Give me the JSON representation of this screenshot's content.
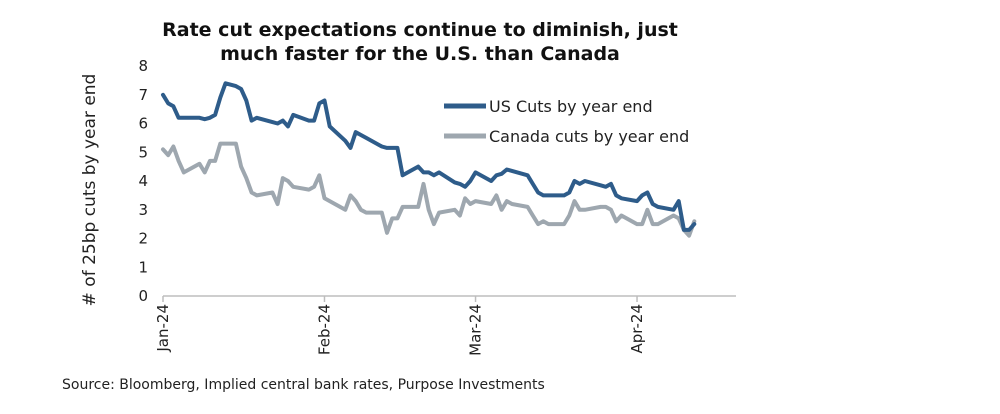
{
  "chart_data": {
    "type": "line",
    "title_lines": [
      "Rate cut expectations continue to diminish, just",
      "much faster for the U.S. than Canada"
    ],
    "ylabel": "# of 25bp cuts by year end",
    "xlabel": "",
    "ylim": [
      0,
      8
    ],
    "yticks": [
      "0",
      "1",
      "2",
      "3",
      "4",
      "5",
      "6",
      "7",
      "8"
    ],
    "xlim": [
      "2024-01-01",
      "2024-04-20"
    ],
    "xticks": [
      {
        "date": "2024-01-01",
        "label": "Jan-24"
      },
      {
        "date": "2024-02-01",
        "label": "Feb-24"
      },
      {
        "date": "2024-03-01",
        "label": "Mar-24"
      },
      {
        "date": "2024-04-01",
        "label": "Apr-24"
      }
    ],
    "grid": false,
    "legend_position": "top-right",
    "series": [
      {
        "name": "US Cuts by year end",
        "color": "#2e5c8a",
        "points": [
          [
            "2024-01-01",
            7.0
          ],
          [
            "2024-01-02",
            6.7
          ],
          [
            "2024-01-03",
            6.6
          ],
          [
            "2024-01-04",
            6.2
          ],
          [
            "2024-01-05",
            6.2
          ],
          [
            "2024-01-08",
            6.2
          ],
          [
            "2024-01-09",
            6.15
          ],
          [
            "2024-01-10",
            6.2
          ],
          [
            "2024-01-11",
            6.3
          ],
          [
            "2024-01-12",
            6.9
          ],
          [
            "2024-01-13",
            7.4
          ],
          [
            "2024-01-15",
            7.3
          ],
          [
            "2024-01-16",
            7.2
          ],
          [
            "2024-01-17",
            6.8
          ],
          [
            "2024-01-18",
            6.1
          ],
          [
            "2024-01-19",
            6.2
          ],
          [
            "2024-01-22",
            6.05
          ],
          [
            "2024-01-23",
            6.0
          ],
          [
            "2024-01-24",
            6.1
          ],
          [
            "2024-01-25",
            5.9
          ],
          [
            "2024-01-26",
            6.3
          ],
          [
            "2024-01-29",
            6.1
          ],
          [
            "2024-01-30",
            6.1
          ],
          [
            "2024-01-31",
            6.7
          ],
          [
            "2024-02-01",
            6.8
          ],
          [
            "2024-02-02",
            5.9
          ],
          [
            "2024-02-05",
            5.4
          ],
          [
            "2024-02-06",
            5.15
          ],
          [
            "2024-02-07",
            5.7
          ],
          [
            "2024-02-08",
            5.6
          ],
          [
            "2024-02-09",
            5.5
          ],
          [
            "2024-02-12",
            5.2
          ],
          [
            "2024-02-13",
            5.15
          ],
          [
            "2024-02-14",
            5.15
          ],
          [
            "2024-02-15",
            5.15
          ],
          [
            "2024-02-16",
            4.2
          ],
          [
            "2024-02-19",
            4.5
          ],
          [
            "2024-02-20",
            4.3
          ],
          [
            "2024-02-21",
            4.3
          ],
          [
            "2024-02-22",
            4.2
          ],
          [
            "2024-02-23",
            4.3
          ],
          [
            "2024-02-26",
            3.95
          ],
          [
            "2024-02-27",
            3.9
          ],
          [
            "2024-02-28",
            3.8
          ],
          [
            "2024-02-29",
            4.0
          ],
          [
            "2024-03-01",
            4.3
          ],
          [
            "2024-03-04",
            4.0
          ],
          [
            "2024-03-05",
            4.2
          ],
          [
            "2024-03-06",
            4.25
          ],
          [
            "2024-03-07",
            4.4
          ],
          [
            "2024-03-08",
            4.35
          ],
          [
            "2024-03-11",
            4.2
          ],
          [
            "2024-03-12",
            3.9
          ],
          [
            "2024-03-13",
            3.6
          ],
          [
            "2024-03-14",
            3.5
          ],
          [
            "2024-03-15",
            3.5
          ],
          [
            "2024-03-18",
            3.5
          ],
          [
            "2024-03-19",
            3.6
          ],
          [
            "2024-03-20",
            4.0
          ],
          [
            "2024-03-21",
            3.9
          ],
          [
            "2024-03-22",
            4.0
          ],
          [
            "2024-03-25",
            3.85
          ],
          [
            "2024-03-26",
            3.8
          ],
          [
            "2024-03-27",
            3.9
          ],
          [
            "2024-03-28",
            3.5
          ],
          [
            "2024-03-29",
            3.4
          ],
          [
            "2024-04-01",
            3.3
          ],
          [
            "2024-04-02",
            3.5
          ],
          [
            "2024-04-03",
            3.6
          ],
          [
            "2024-04-04",
            3.2
          ],
          [
            "2024-04-05",
            3.1
          ],
          [
            "2024-04-08",
            3.0
          ],
          [
            "2024-04-09",
            3.3
          ],
          [
            "2024-04-10",
            2.3
          ],
          [
            "2024-04-11",
            2.3
          ],
          [
            "2024-04-12",
            2.5
          ]
        ]
      },
      {
        "name": "Canada cuts by year end",
        "color": "#9ea7af",
        "points": [
          [
            "2024-01-01",
            5.1
          ],
          [
            "2024-01-02",
            4.9
          ],
          [
            "2024-01-03",
            5.2
          ],
          [
            "2024-01-04",
            4.7
          ],
          [
            "2024-01-05",
            4.3
          ],
          [
            "2024-01-08",
            4.6
          ],
          [
            "2024-01-09",
            4.3
          ],
          [
            "2024-01-10",
            4.7
          ],
          [
            "2024-01-11",
            4.7
          ],
          [
            "2024-01-12",
            5.3
          ],
          [
            "2024-01-15",
            5.3
          ],
          [
            "2024-01-16",
            4.5
          ],
          [
            "2024-01-17",
            4.1
          ],
          [
            "2024-01-18",
            3.6
          ],
          [
            "2024-01-19",
            3.5
          ],
          [
            "2024-01-22",
            3.6
          ],
          [
            "2024-01-23",
            3.2
          ],
          [
            "2024-01-24",
            4.1
          ],
          [
            "2024-01-25",
            4.0
          ],
          [
            "2024-01-26",
            3.8
          ],
          [
            "2024-01-29",
            3.7
          ],
          [
            "2024-01-30",
            3.8
          ],
          [
            "2024-01-31",
            4.2
          ],
          [
            "2024-02-01",
            3.4
          ],
          [
            "2024-02-02",
            3.3
          ],
          [
            "2024-02-05",
            3.0
          ],
          [
            "2024-02-06",
            3.5
          ],
          [
            "2024-02-07",
            3.3
          ],
          [
            "2024-02-08",
            3.0
          ],
          [
            "2024-02-09",
            2.9
          ],
          [
            "2024-02-12",
            2.9
          ],
          [
            "2024-02-13",
            2.2
          ],
          [
            "2024-02-14",
            2.7
          ],
          [
            "2024-02-15",
            2.7
          ],
          [
            "2024-02-16",
            3.1
          ],
          [
            "2024-02-19",
            3.1
          ],
          [
            "2024-02-20",
            3.9
          ],
          [
            "2024-02-21",
            3.0
          ],
          [
            "2024-02-22",
            2.5
          ],
          [
            "2024-02-23",
            2.9
          ],
          [
            "2024-02-26",
            3.0
          ],
          [
            "2024-02-27",
            2.8
          ],
          [
            "2024-02-28",
            3.4
          ],
          [
            "2024-02-29",
            3.2
          ],
          [
            "2024-03-01",
            3.3
          ],
          [
            "2024-03-04",
            3.2
          ],
          [
            "2024-03-05",
            3.5
          ],
          [
            "2024-03-06",
            3.0
          ],
          [
            "2024-03-07",
            3.3
          ],
          [
            "2024-03-08",
            3.2
          ],
          [
            "2024-03-11",
            3.1
          ],
          [
            "2024-03-12",
            2.8
          ],
          [
            "2024-03-13",
            2.5
          ],
          [
            "2024-03-14",
            2.6
          ],
          [
            "2024-03-15",
            2.5
          ],
          [
            "2024-03-18",
            2.5
          ],
          [
            "2024-03-19",
            2.8
          ],
          [
            "2024-03-20",
            3.3
          ],
          [
            "2024-03-21",
            3.0
          ],
          [
            "2024-03-22",
            3.0
          ],
          [
            "2024-03-25",
            3.1
          ],
          [
            "2024-03-26",
            3.1
          ],
          [
            "2024-03-27",
            3.0
          ],
          [
            "2024-03-28",
            2.6
          ],
          [
            "2024-03-29",
            2.8
          ],
          [
            "2024-04-01",
            2.5
          ],
          [
            "2024-04-02",
            2.5
          ],
          [
            "2024-04-03",
            3.0
          ],
          [
            "2024-04-04",
            2.5
          ],
          [
            "2024-04-05",
            2.5
          ],
          [
            "2024-04-08",
            2.8
          ],
          [
            "2024-04-09",
            2.7
          ],
          [
            "2024-04-10",
            2.3
          ],
          [
            "2024-04-11",
            2.1
          ],
          [
            "2024-04-12",
            2.6
          ]
        ]
      }
    ]
  },
  "source_note": "Source: Bloomberg, Implied central bank rates, Purpose Investments"
}
